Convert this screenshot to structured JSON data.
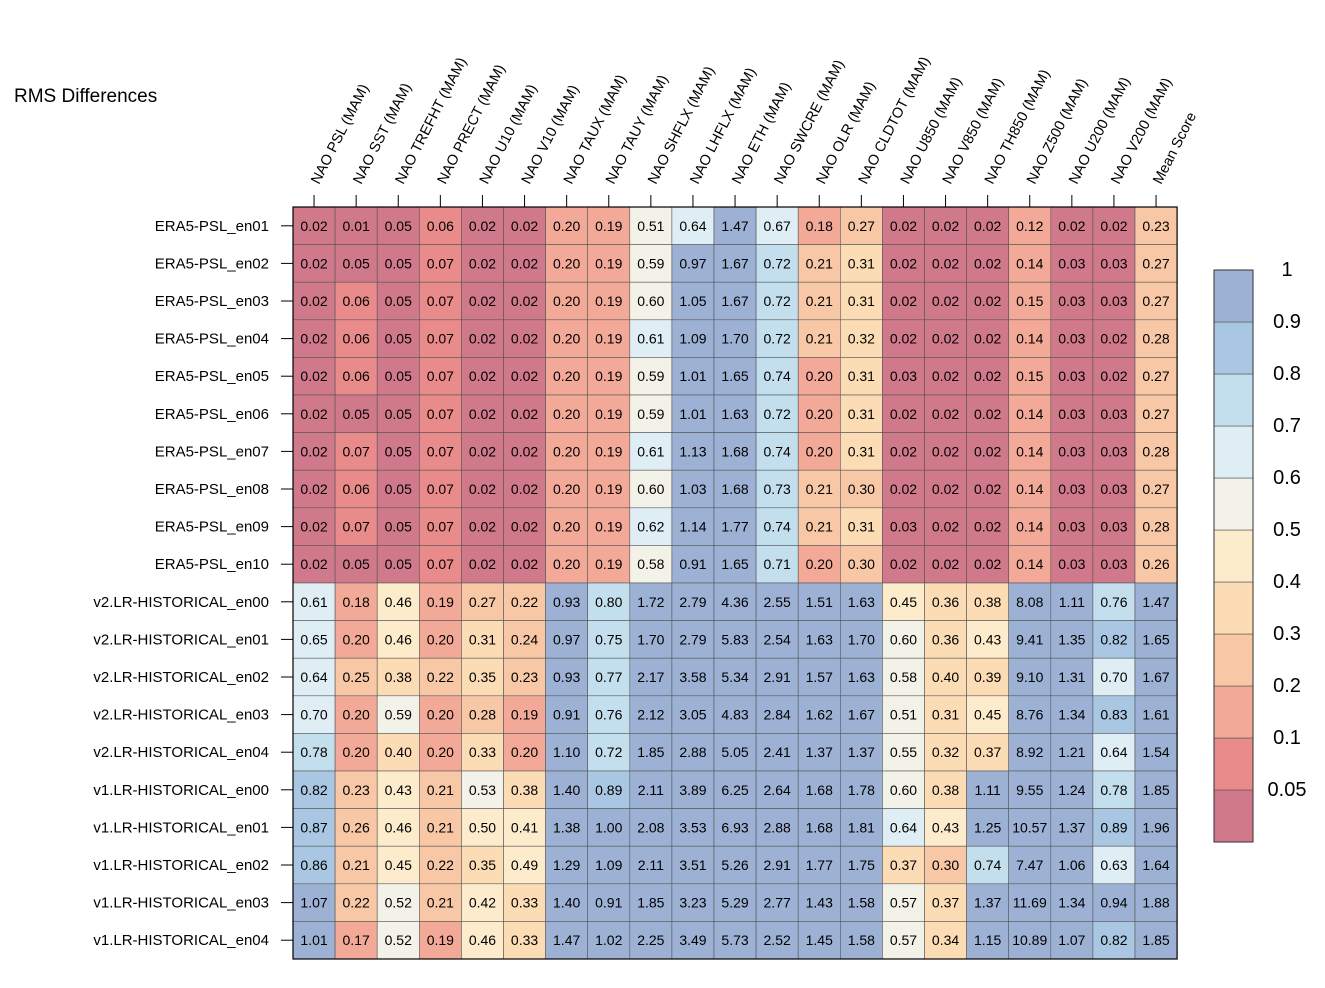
{
  "chart_data": {
    "type": "heatmap",
    "title": "RMS Differences",
    "columns": [
      "NAO PSL (MAM)",
      "NAO SST (MAM)",
      "NAO TREFHT (MAM)",
      "NAO PRECT (MAM)",
      "NAO U10 (MAM)",
      "NAO V10 (MAM)",
      "NAO TAUX (MAM)",
      "NAO TAUY (MAM)",
      "NAO SHFLX (MAM)",
      "NAO LHFLX (MAM)",
      "NAO ETH (MAM)",
      "NAO SWCRE (MAM)",
      "NAO OLR (MAM)",
      "NAO CLDTOT (MAM)",
      "NAO U850 (MAM)",
      "NAO V850 (MAM)",
      "NAO TH850 (MAM)",
      "NAO Z500 (MAM)",
      "NAO U200 (MAM)",
      "NAO V200 (MAM)",
      "Mean Score"
    ],
    "rows": [
      "ERA5-PSL_en01",
      "ERA5-PSL_en02",
      "ERA5-PSL_en03",
      "ERA5-PSL_en04",
      "ERA5-PSL_en05",
      "ERA5-PSL_en06",
      "ERA5-PSL_en07",
      "ERA5-PSL_en08",
      "ERA5-PSL_en09",
      "ERA5-PSL_en10",
      "v2.LR-HISTORICAL_en00",
      "v2.LR-HISTORICAL_en01",
      "v2.LR-HISTORICAL_en02",
      "v2.LR-HISTORICAL_en03",
      "v2.LR-HISTORICAL_en04",
      "v1.LR-HISTORICAL_en00",
      "v1.LR-HISTORICAL_en01",
      "v1.LR-HISTORICAL_en02",
      "v1.LR-HISTORICAL_en03",
      "v1.LR-HISTORICAL_en04"
    ],
    "values": [
      [
        "0.02",
        "0.01",
        "0.05",
        "0.06",
        "0.02",
        "0.02",
        "0.20",
        "0.19",
        "0.51",
        "0.64",
        "1.47",
        "0.67",
        "0.18",
        "0.27",
        "0.02",
        "0.02",
        "0.02",
        "0.12",
        "0.02",
        "0.02",
        "0.23"
      ],
      [
        "0.02",
        "0.05",
        "0.05",
        "0.07",
        "0.02",
        "0.02",
        "0.20",
        "0.19",
        "0.59",
        "0.97",
        "1.67",
        "0.72",
        "0.21",
        "0.31",
        "0.02",
        "0.02",
        "0.02",
        "0.14",
        "0.03",
        "0.03",
        "0.27"
      ],
      [
        "0.02",
        "0.06",
        "0.05",
        "0.07",
        "0.02",
        "0.02",
        "0.20",
        "0.19",
        "0.60",
        "1.05",
        "1.67",
        "0.72",
        "0.21",
        "0.31",
        "0.02",
        "0.02",
        "0.02",
        "0.15",
        "0.03",
        "0.03",
        "0.27"
      ],
      [
        "0.02",
        "0.06",
        "0.05",
        "0.07",
        "0.02",
        "0.02",
        "0.20",
        "0.19",
        "0.61",
        "1.09",
        "1.70",
        "0.72",
        "0.21",
        "0.32",
        "0.02",
        "0.02",
        "0.02",
        "0.14",
        "0.03",
        "0.02",
        "0.28"
      ],
      [
        "0.02",
        "0.06",
        "0.05",
        "0.07",
        "0.02",
        "0.02",
        "0.20",
        "0.19",
        "0.59",
        "1.01",
        "1.65",
        "0.74",
        "0.20",
        "0.31",
        "0.03",
        "0.02",
        "0.02",
        "0.15",
        "0.03",
        "0.02",
        "0.27"
      ],
      [
        "0.02",
        "0.05",
        "0.05",
        "0.07",
        "0.02",
        "0.02",
        "0.20",
        "0.19",
        "0.59",
        "1.01",
        "1.63",
        "0.72",
        "0.20",
        "0.31",
        "0.02",
        "0.02",
        "0.02",
        "0.14",
        "0.03",
        "0.03",
        "0.27"
      ],
      [
        "0.02",
        "0.07",
        "0.05",
        "0.07",
        "0.02",
        "0.02",
        "0.20",
        "0.19",
        "0.61",
        "1.13",
        "1.68",
        "0.74",
        "0.20",
        "0.31",
        "0.02",
        "0.02",
        "0.02",
        "0.14",
        "0.03",
        "0.03",
        "0.28"
      ],
      [
        "0.02",
        "0.06",
        "0.05",
        "0.07",
        "0.02",
        "0.02",
        "0.20",
        "0.19",
        "0.60",
        "1.03",
        "1.68",
        "0.73",
        "0.21",
        "0.30",
        "0.02",
        "0.02",
        "0.02",
        "0.14",
        "0.03",
        "0.03",
        "0.27"
      ],
      [
        "0.02",
        "0.07",
        "0.05",
        "0.07",
        "0.02",
        "0.02",
        "0.20",
        "0.19",
        "0.62",
        "1.14",
        "1.77",
        "0.74",
        "0.21",
        "0.31",
        "0.03",
        "0.02",
        "0.02",
        "0.14",
        "0.03",
        "0.03",
        "0.28"
      ],
      [
        "0.02",
        "0.05",
        "0.05",
        "0.07",
        "0.02",
        "0.02",
        "0.20",
        "0.19",
        "0.58",
        "0.91",
        "1.65",
        "0.71",
        "0.20",
        "0.30",
        "0.02",
        "0.02",
        "0.02",
        "0.14",
        "0.03",
        "0.03",
        "0.26"
      ],
      [
        "0.61",
        "0.18",
        "0.46",
        "0.19",
        "0.27",
        "0.22",
        "0.93",
        "0.80",
        "1.72",
        "2.79",
        "4.36",
        "2.55",
        "1.51",
        "1.63",
        "0.45",
        "0.36",
        "0.38",
        "8.08",
        "1.11",
        "0.76",
        "1.47"
      ],
      [
        "0.65",
        "0.20",
        "0.46",
        "0.20",
        "0.31",
        "0.24",
        "0.97",
        "0.75",
        "1.70",
        "2.79",
        "5.83",
        "2.54",
        "1.63",
        "1.70",
        "0.60",
        "0.36",
        "0.43",
        "9.41",
        "1.35",
        "0.82",
        "1.65"
      ],
      [
        "0.64",
        "0.25",
        "0.38",
        "0.22",
        "0.35",
        "0.23",
        "0.93",
        "0.77",
        "2.17",
        "3.58",
        "5.34",
        "2.91",
        "1.57",
        "1.63",
        "0.58",
        "0.40",
        "0.39",
        "9.10",
        "1.31",
        "0.70",
        "1.67"
      ],
      [
        "0.70",
        "0.20",
        "0.59",
        "0.20",
        "0.28",
        "0.19",
        "0.91",
        "0.76",
        "2.12",
        "3.05",
        "4.83",
        "2.84",
        "1.62",
        "1.67",
        "0.51",
        "0.31",
        "0.45",
        "8.76",
        "1.34",
        "0.83",
        "1.61"
      ],
      [
        "0.78",
        "0.20",
        "0.40",
        "0.20",
        "0.33",
        "0.20",
        "1.10",
        "0.72",
        "1.85",
        "2.88",
        "5.05",
        "2.41",
        "1.37",
        "1.37",
        "0.55",
        "0.32",
        "0.37",
        "8.92",
        "1.21",
        "0.64",
        "1.54"
      ],
      [
        "0.82",
        "0.23",
        "0.43",
        "0.21",
        "0.53",
        "0.38",
        "1.40",
        "0.89",
        "2.11",
        "3.89",
        "6.25",
        "2.64",
        "1.68",
        "1.78",
        "0.60",
        "0.38",
        "1.11",
        "9.55",
        "1.24",
        "0.78",
        "1.85"
      ],
      [
        "0.87",
        "0.26",
        "0.46",
        "0.21",
        "0.50",
        "0.41",
        "1.38",
        "1.00",
        "2.08",
        "3.53",
        "6.93",
        "2.88",
        "1.68",
        "1.81",
        "0.64",
        "0.43",
        "1.25",
        "10.57",
        "1.37",
        "0.89",
        "1.96"
      ],
      [
        "0.86",
        "0.21",
        "0.45",
        "0.22",
        "0.35",
        "0.49",
        "1.29",
        "1.09",
        "2.11",
        "3.51",
        "5.26",
        "2.91",
        "1.77",
        "1.75",
        "0.37",
        "0.30",
        "0.74",
        "7.47",
        "1.06",
        "0.63",
        "1.64"
      ],
      [
        "1.07",
        "0.22",
        "0.52",
        "0.21",
        "0.42",
        "0.33",
        "1.40",
        "0.91",
        "1.85",
        "3.23",
        "5.29",
        "2.77",
        "1.43",
        "1.58",
        "0.57",
        "0.37",
        "1.37",
        "11.69",
        "1.34",
        "0.94",
        "1.88"
      ],
      [
        "1.01",
        "0.17",
        "0.52",
        "0.19",
        "0.46",
        "0.33",
        "1.47",
        "1.02",
        "2.25",
        "3.49",
        "5.73",
        "2.52",
        "1.45",
        "1.58",
        "0.57",
        "0.34",
        "1.15",
        "10.89",
        "1.07",
        "0.82",
        "1.85"
      ]
    ],
    "colorbar": {
      "labels": [
        "0.05",
        "0.1",
        "0.2",
        "0.3",
        "0.4",
        "0.5",
        "0.6",
        "0.7",
        "0.8",
        "0.9",
        "1"
      ],
      "colors": [
        "#d0798b",
        "#e98a8b",
        "#f3a998",
        "#f8c8a6",
        "#fcdcb4",
        "#fdeccb",
        "#f3f2e9",
        "#dfeef5",
        "#c3dfed",
        "#a9c7e2",
        "#9cb1d4"
      ]
    }
  }
}
